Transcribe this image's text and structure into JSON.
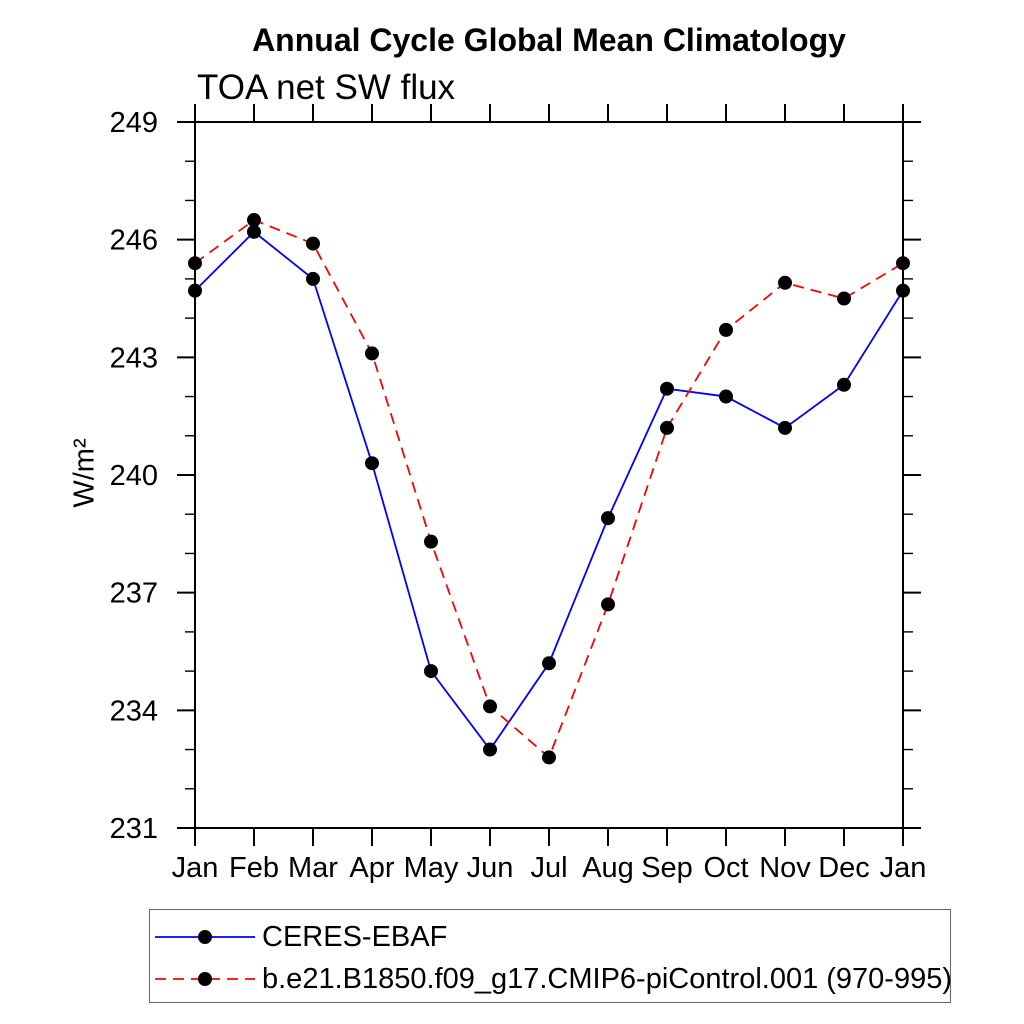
{
  "chart_data": {
    "type": "line",
    "title": "Annual Cycle Global Mean Climatology",
    "subtitle": "TOA net SW flux",
    "ylabel": "W/m²",
    "x_categories": [
      "Jan",
      "Feb",
      "Mar",
      "Apr",
      "May",
      "Jun",
      "Jul",
      "Aug",
      "Sep",
      "Oct",
      "Nov",
      "Dec",
      "Jan"
    ],
    "ylim": [
      231,
      249
    ],
    "y_major_ticks": [
      231,
      234,
      237,
      240,
      243,
      246,
      249
    ],
    "y_minor_tick_interval": 1,
    "grid": false,
    "legend_position": "bottom",
    "frame_color": "#000000",
    "series": [
      {
        "name": "CERES-EBAF",
        "color": "#0000ff",
        "line_style": "solid",
        "marker": "filled-circle",
        "marker_color": "#000000",
        "values": [
          244.7,
          246.2,
          245.0,
          240.3,
          235.0,
          233.0,
          235.2,
          238.9,
          242.2,
          242.0,
          241.2,
          242.3,
          244.7
        ]
      },
      {
        "name": "b.e21.B1850.f09_g17.CMIP6-piControl.001 (970-995)",
        "color": "#ff0000",
        "line_style": "dashed",
        "marker": "filled-circle",
        "marker_color": "#000000",
        "values": [
          245.4,
          246.5,
          245.9,
          243.1,
          238.3,
          234.1,
          232.8,
          236.7,
          241.2,
          243.7,
          244.9,
          244.5,
          245.4
        ]
      }
    ]
  }
}
